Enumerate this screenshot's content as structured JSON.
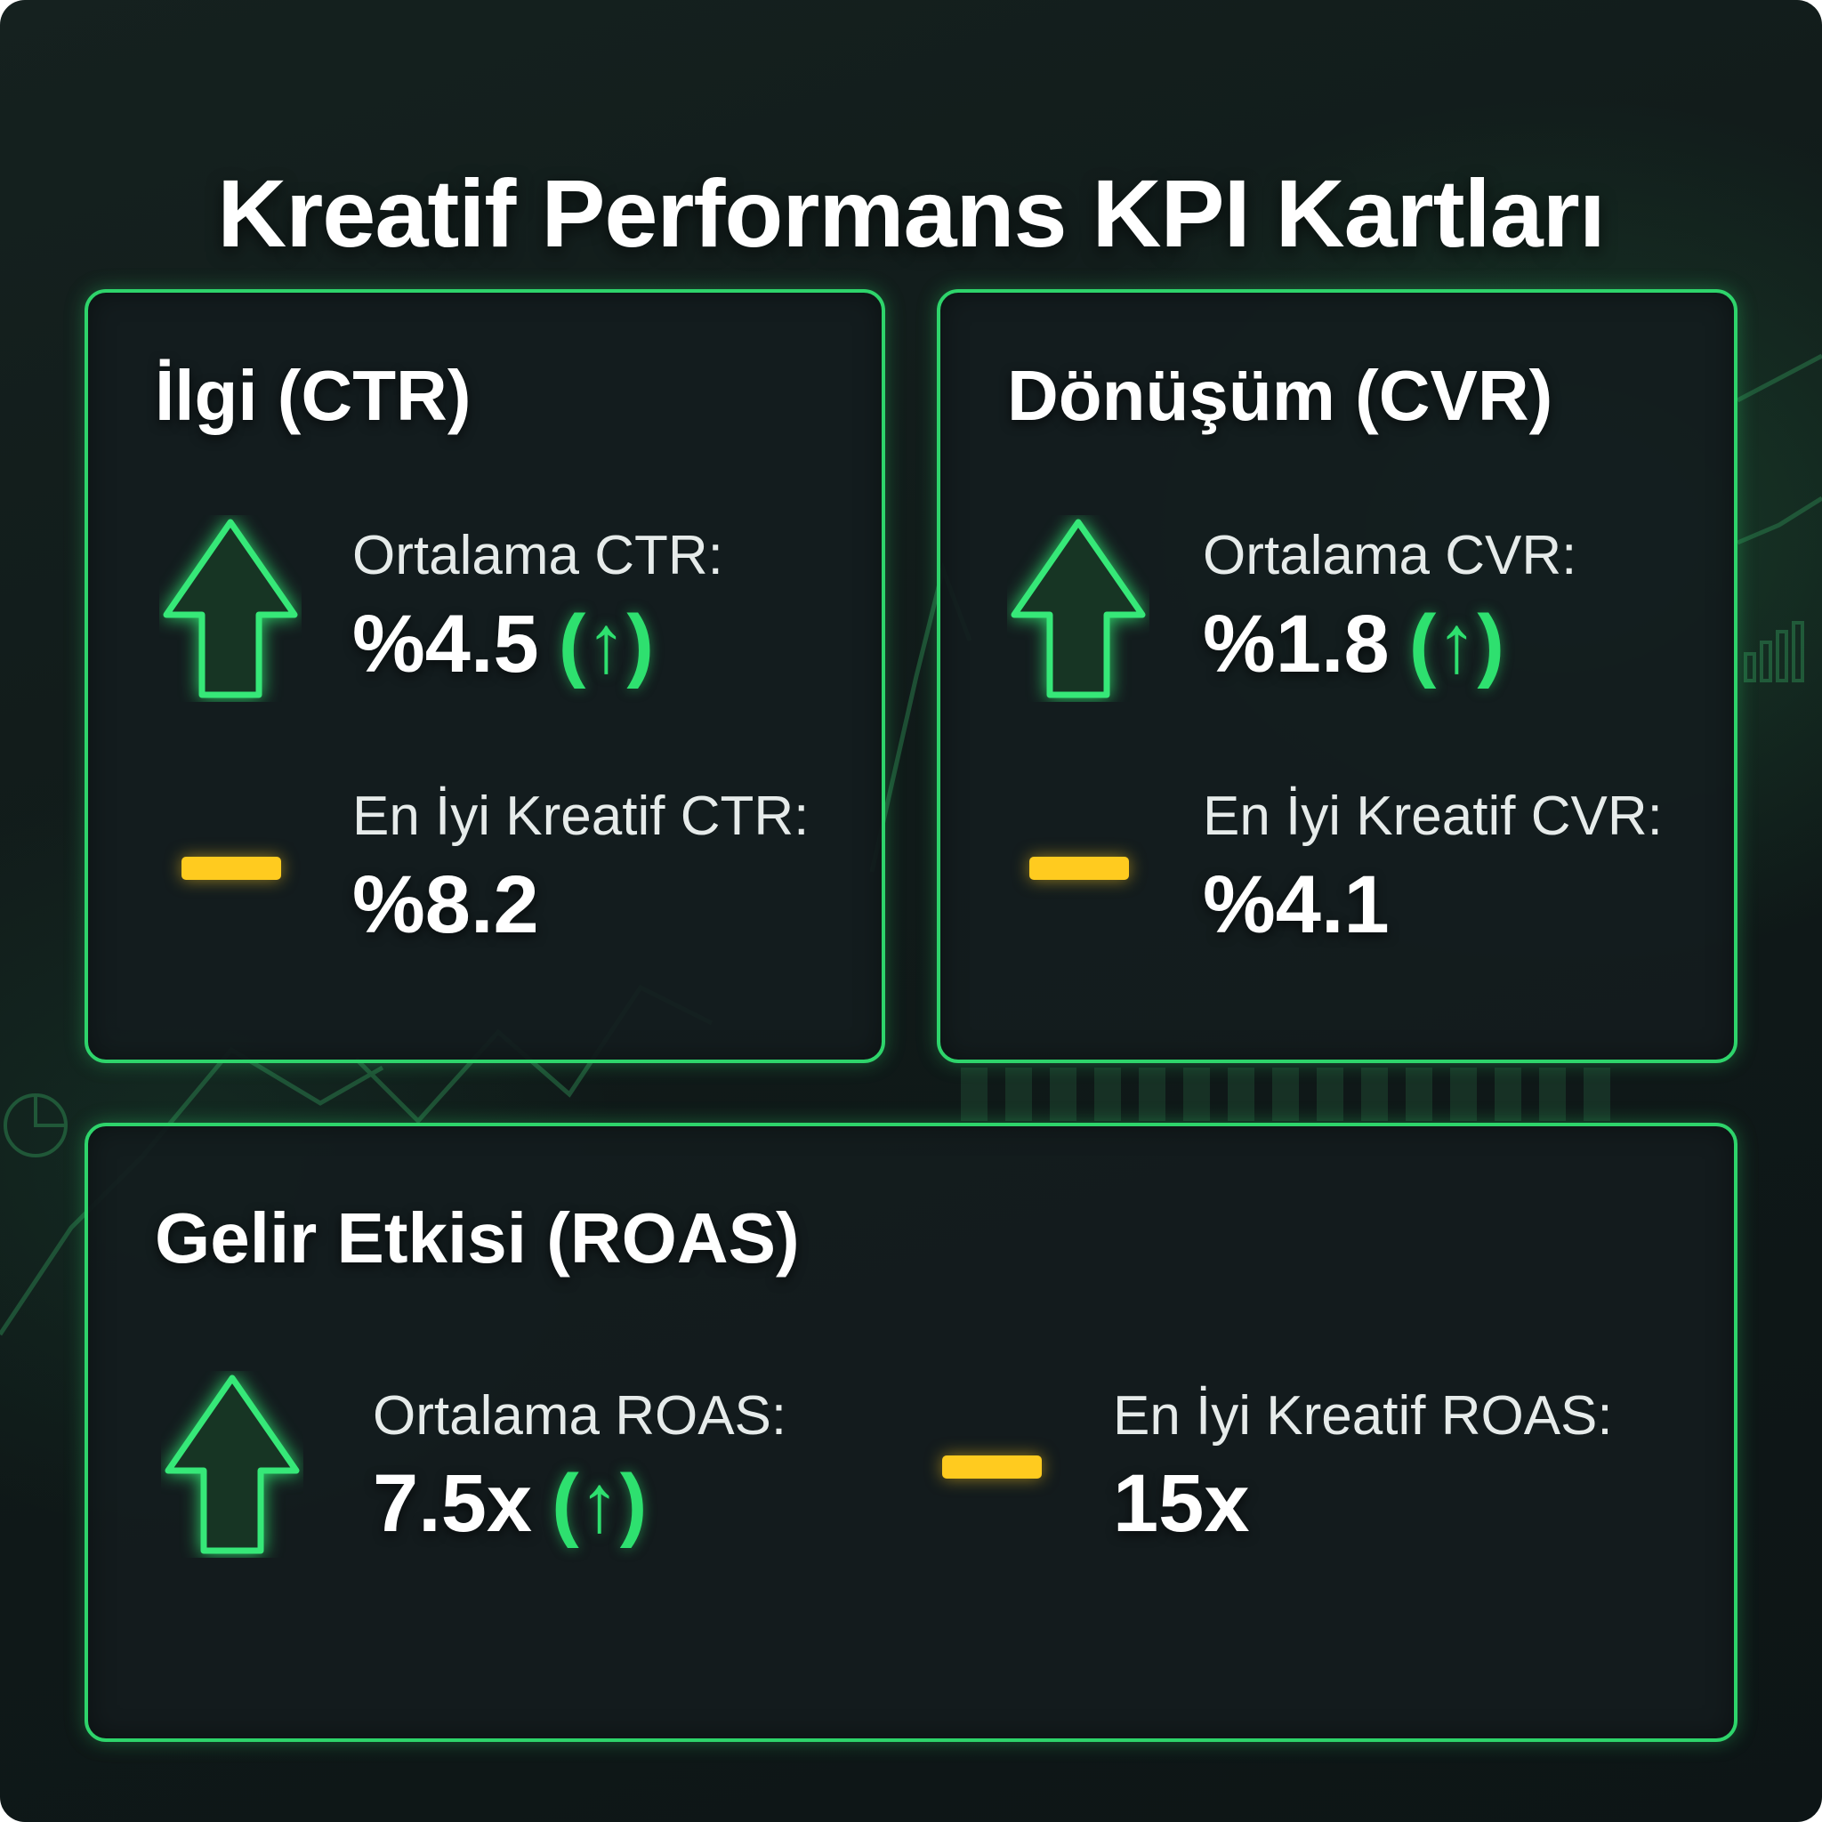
{
  "title": "Kreatif Performans KPI Kartları",
  "colors": {
    "accent_green": "#2ed46b",
    "trend_up": "#2ee06f",
    "neutral_dash": "#ffcb1f",
    "background": "#111b1a"
  },
  "cards": {
    "ctr": {
      "title": "İlgi (CTR)",
      "average": {
        "icon": "arrow-up-icon",
        "label": "Ortalama CTR:",
        "value": "%4.5",
        "trend": "(↑)"
      },
      "best": {
        "icon": "dash-icon",
        "label": "En İyi Kreatif CTR:",
        "value": "%8.2"
      }
    },
    "cvr": {
      "title": "Dönüşüm (CVR)",
      "average": {
        "icon": "arrow-up-icon",
        "label": "Ortalama CVR:",
        "value": "%1.8",
        "trend": "(↑)"
      },
      "best": {
        "icon": "dash-icon",
        "label": "En İyi Kreatif CVR:",
        "value": "%4.1"
      }
    },
    "roas": {
      "title": "Gelir Etkisi (ROAS)",
      "average": {
        "icon": "arrow-up-icon",
        "label": "Ortalama ROAS:",
        "value": "7.5x",
        "trend": "(↑)"
      },
      "best": {
        "icon": "dash-icon",
        "label": "En İyi Kreatif ROAS:",
        "value": "15x"
      }
    }
  }
}
